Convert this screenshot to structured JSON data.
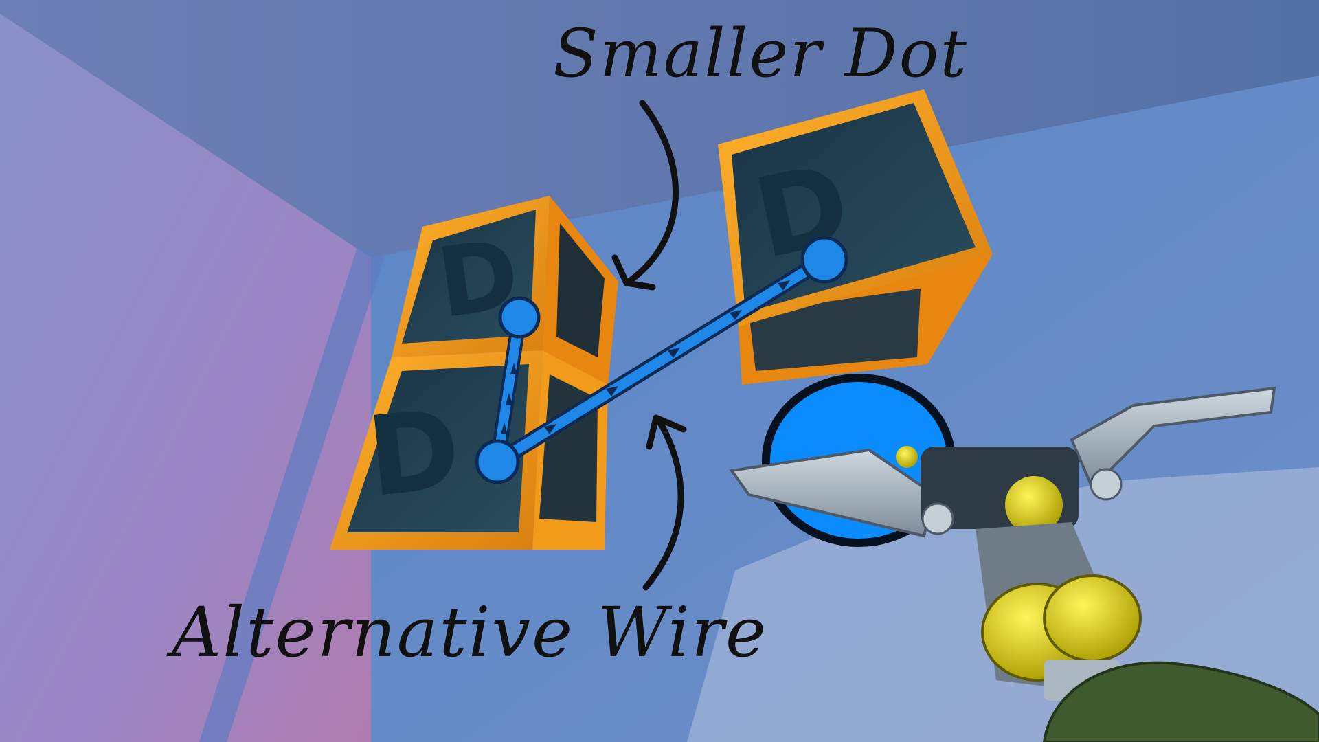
{
  "annotations": {
    "smaller_dot": "Smaller Dot",
    "alternative_wire": "Alternative Wire"
  },
  "blocks": {
    "face_letter": "D"
  },
  "colors": {
    "wall_left": "#8a7fc0",
    "wall_back": "#5c83bf",
    "ceiling": "#5a74a6",
    "block_frame": "#f29a1a",
    "block_face": "#1e3a4a",
    "wire": "#1f87e8",
    "wire_outline": "#0b2a55",
    "tool_dot": "#0a8cff",
    "tool_metal": "#9aa8b4",
    "tool_yellow": "#d9cf12",
    "hand": "#3f5a2c"
  },
  "icons": [
    "connect-tool-icon",
    "arrow-icon",
    "wire-arrow-icon"
  ]
}
